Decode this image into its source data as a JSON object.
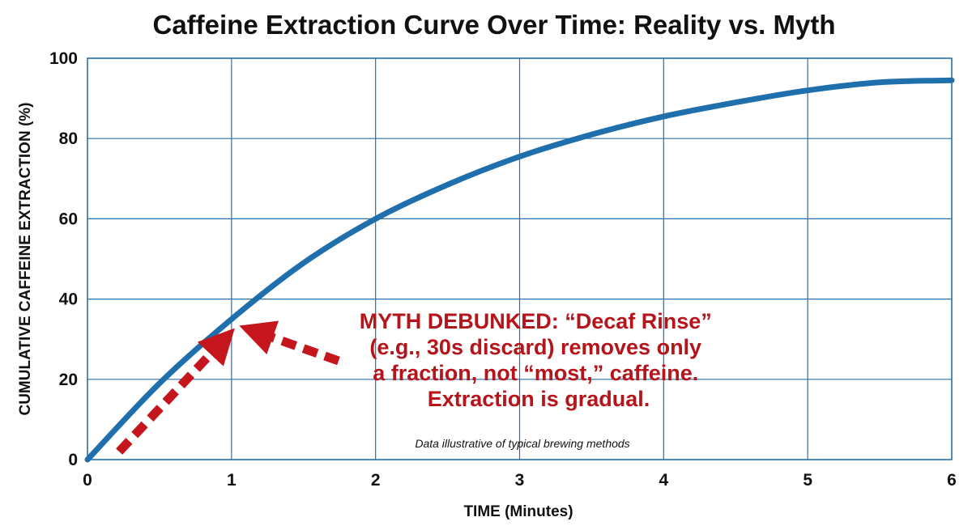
{
  "chart_data": {
    "type": "line",
    "title": "Caffeine Extraction Curve Over Time: Reality vs. Myth",
    "xlabel": "TIME (Minutes)",
    "ylabel": "CUMULATIVE CAFFEINE EXTRACTION (%)",
    "xlim": [
      0,
      6
    ],
    "ylim": [
      0,
      100
    ],
    "xticks": [
      0,
      1,
      2,
      3,
      4,
      5,
      6
    ],
    "yticks": [
      0,
      20,
      40,
      60,
      80,
      100
    ],
    "grid": true,
    "series": [
      {
        "color": "#1f6fad",
        "x": [
          0,
          0.5,
          1,
          1.5,
          2,
          2.5,
          3,
          3.5,
          4,
          4.5,
          5,
          5.5,
          6
        ],
        "y": [
          0,
          19,
          35,
          49,
          60,
          68.5,
          75.5,
          81,
          85.5,
          89,
          92,
          94,
          94.5
        ]
      }
    ],
    "annotations": {
      "myth_lines": [
        "MYTH DEBUNKED: “Decaf Rinse”",
        "(e.g., 30s discard) removes only",
        "a fraction, not “most,” caffeine.",
        "Extraction is gradual."
      ],
      "myth_color": "#b5141b",
      "note": "Data illustrative of typical brewing methods"
    }
  }
}
